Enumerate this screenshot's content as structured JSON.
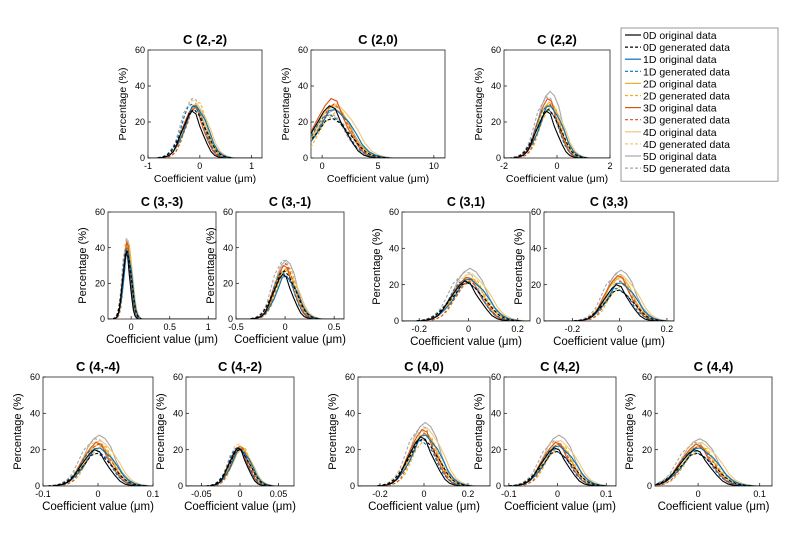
{
  "chart_data": {
    "type": "line",
    "ylabel": "Percentage (%)",
    "xlabel": "Coefficient value (μm)",
    "legend": {
      "placement": "top-right",
      "entries": [
        {
          "name": "0D original data",
          "color": "#000000",
          "dash": "solid"
        },
        {
          "name": "0D generated data",
          "color": "#000000",
          "dash": "dashed"
        },
        {
          "name": "1D original data",
          "color": "#0072BD",
          "dash": "solid"
        },
        {
          "name": "1D generated data",
          "color": "#0072BD",
          "dash": "dashed"
        },
        {
          "name": "2D original data",
          "color": "#EDB120",
          "dash": "solid"
        },
        {
          "name": "2D generated data",
          "color": "#EDB120",
          "dash": "dashed"
        },
        {
          "name": "3D original data",
          "color": "#D95319",
          "dash": "solid"
        },
        {
          "name": "3D generated data",
          "color": "#D95319",
          "dash": "dashed"
        },
        {
          "name": "4D original data",
          "color": "#F2C777",
          "dash": "solid"
        },
        {
          "name": "4D generated data",
          "color": "#F2C777",
          "dash": "dashed"
        },
        {
          "name": "5D original data",
          "color": "#A6A6A6",
          "dash": "solid"
        },
        {
          "name": "5D generated data",
          "color": "#A6A6A6",
          "dash": "dashed"
        }
      ]
    },
    "panels": [
      {
        "title": "C (2,-2)",
        "xlim": [
          -1,
          1.2
        ],
        "xticks": [
          -1,
          0,
          1
        ],
        "ylim": [
          0,
          60
        ],
        "yticks": [
          0,
          20,
          40,
          60
        ],
        "xtick_labels": [
          "-1",
          "0",
          "1"
        ],
        "center": -0.1,
        "width": 0.2,
        "peaks": [
          26,
          27,
          29,
          30,
          28,
          31,
          29,
          28,
          30,
          32,
          29,
          33
        ]
      },
      {
        "title": "C (2,0)",
        "xlim": [
          -1,
          11
        ],
        "xticks": [
          0,
          5,
          10
        ],
        "ylim": [
          0,
          60
        ],
        "yticks": [
          0,
          20,
          40,
          60
        ],
        "xtick_labels": [
          "0",
          "5",
          "10"
        ],
        "center": 1,
        "width": 1.4,
        "peaks": [
          29,
          22,
          27,
          24,
          29,
          26,
          33,
          30,
          30,
          24,
          27,
          24
        ]
      },
      {
        "title": "C (2,2)",
        "xlim": [
          -2,
          2
        ],
        "xticks": [
          -2,
          0,
          2
        ],
        "ylim": [
          0,
          60
        ],
        "yticks": [
          0,
          20,
          40,
          60
        ],
        "xtick_labels": [
          "-2",
          "0",
          "2"
        ],
        "center": -0.3,
        "width": 0.4,
        "peaks": [
          26,
          27,
          29,
          28,
          31,
          29,
          33,
          30,
          30,
          28,
          37,
          34
        ]
      },
      {
        "title": "C (3,-3)",
        "xlim": [
          -0.3,
          1.1
        ],
        "xticks": [
          0,
          0.5,
          1
        ],
        "ylim": [
          0,
          60
        ],
        "yticks": [
          0,
          20,
          40,
          60
        ],
        "xtick_labels": [
          "0",
          "0.5",
          "1"
        ],
        "center": -0.05,
        "width": 0.05,
        "peaks": [
          37,
          38,
          38,
          39,
          41,
          42,
          43,
          40,
          42,
          44,
          44,
          45
        ]
      },
      {
        "title": "C (3,-1)",
        "xlim": [
          -0.5,
          0.6
        ],
        "xticks": [
          -0.5,
          0,
          0.5
        ],
        "ylim": [
          0,
          60
        ],
        "yticks": [
          0,
          20,
          40,
          60
        ],
        "xtick_labels": [
          "-0.5",
          "0",
          "0.5"
        ],
        "center": 0,
        "width": 0.1,
        "peaks": [
          25,
          27,
          24,
          26,
          28,
          29,
          30,
          31,
          27,
          30,
          33,
          33
        ]
      },
      {
        "title": "C (3,1)",
        "xlim": [
          -0.27,
          0.25
        ],
        "xticks": [
          -0.2,
          0,
          0.2
        ],
        "ylim": [
          0,
          60
        ],
        "yticks": [
          0,
          20,
          40,
          60
        ],
        "xtick_labels": [
          "-0.2",
          "0",
          "0.2"
        ],
        "center": 0,
        "width": 0.06,
        "peaks": [
          22,
          21,
          23,
          22,
          24,
          23,
          24,
          22,
          26,
          24,
          29,
          27
        ]
      },
      {
        "title": "C (3,3)",
        "xlim": [
          -0.32,
          0.23
        ],
        "xticks": [
          -0.2,
          0,
          0.2
        ],
        "ylim": [
          0,
          60
        ],
        "yticks": [
          0,
          20,
          40,
          60
        ],
        "xtick_labels": [
          "-0.2",
          "0",
          "0.2"
        ],
        "center": 0,
        "width": 0.055,
        "peaks": [
          20,
          17,
          21,
          18,
          24,
          20,
          25,
          22,
          25,
          23,
          28,
          26
        ]
      },
      {
        "title": "C (4,-4)",
        "xlim": [
          -0.1,
          0.1
        ],
        "xticks": [
          -0.1,
          0,
          0.1
        ],
        "ylim": [
          0,
          60
        ],
        "yticks": [
          0,
          20,
          40,
          60
        ],
        "xtick_labels": [
          "-0.1",
          "0",
          "0.1"
        ],
        "center": 0,
        "width": 0.025,
        "peaks": [
          20,
          18,
          21,
          20,
          23,
          22,
          24,
          23,
          25,
          24,
          28,
          26
        ]
      },
      {
        "title": "C (4,-2)",
        "xlim": [
          -0.07,
          0.07
        ],
        "xticks": [
          -0.05,
          0,
          0.05
        ],
        "ylim": [
          0,
          60
        ],
        "yticks": [
          0,
          20,
          40,
          60
        ],
        "xtick_labels": [
          "-0.05",
          "0",
          "0.05"
        ],
        "center": 0,
        "width": 0.012,
        "peaks": [
          21,
          20,
          20,
          21,
          22,
          21,
          21,
          22,
          20,
          23,
          21,
          22
        ]
      },
      {
        "title": "C (4,0)",
        "xlim": [
          -0.3,
          0.3
        ],
        "xticks": [
          -0.2,
          0,
          0.2
        ],
        "ylim": [
          0,
          60
        ],
        "yticks": [
          0,
          20,
          40,
          60
        ],
        "xtick_labels": [
          "-0.2",
          "0",
          "0.2"
        ],
        "center": 0,
        "width": 0.06,
        "peaks": [
          27,
          26,
          28,
          25,
          29,
          27,
          31,
          29,
          32,
          30,
          35,
          33
        ]
      },
      {
        "title": "C (4,2)",
        "xlim": [
          -0.11,
          0.12
        ],
        "xticks": [
          -0.1,
          0,
          0.1
        ],
        "ylim": [
          0,
          60
        ],
        "yticks": [
          0,
          20,
          40,
          60
        ],
        "xtick_labels": [
          "-0.1",
          "0",
          "0.1"
        ],
        "center": 0,
        "width": 0.028,
        "peaks": [
          21,
          19,
          22,
          20,
          23,
          22,
          24,
          23,
          25,
          24,
          28,
          25
        ]
      },
      {
        "title": "C (4,4)",
        "xlim": [
          -0.07,
          0.12
        ],
        "xticks": [
          0,
          0.1
        ],
        "ylim": [
          0,
          60
        ],
        "yticks": [
          0,
          20,
          40,
          60
        ],
        "xtick_labels": [
          "0",
          "0.1"
        ],
        "center": 0,
        "width": 0.025,
        "peaks": [
          20,
          18,
          21,
          19,
          22,
          21,
          23,
          22,
          24,
          23,
          26,
          24
        ]
      }
    ]
  }
}
